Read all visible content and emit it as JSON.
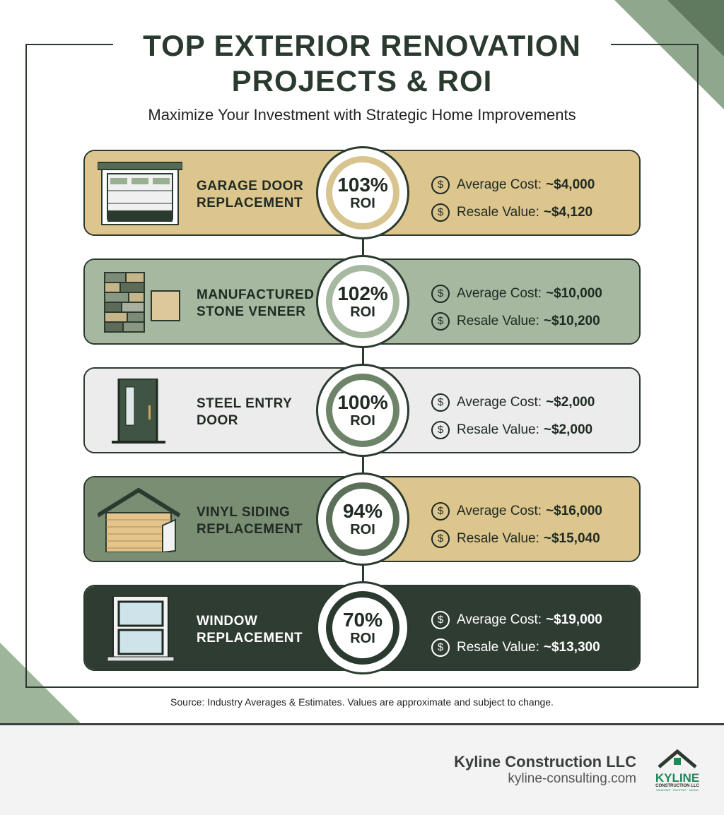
{
  "header": {
    "title_line1": "TOP EXTERIOR RENOVATION",
    "title_line2": "PROJECTS & ROI",
    "subtitle": "Maximize Your Investment with Strategic Home Improvements"
  },
  "projects": [
    {
      "name1": "GARAGE DOOR",
      "name2": "REPLACEMENT",
      "roi": "103%",
      "roi_label": "ROI",
      "cost_label": "Average Cost:",
      "cost": "~$4,000",
      "resale_label": "Resale Value:",
      "resale": "~$4,120",
      "icon": "garage-door-icon",
      "left_color": "#dcc68e",
      "right_color": "#dcc68e",
      "ring_color": "#d8c48f",
      "text_color": "#1f2a22"
    },
    {
      "name1": "MANUFACTURED",
      "name2": "STONE VENEER",
      "roi": "102%",
      "roi_label": "ROI",
      "cost_label": "Average Cost:",
      "cost": "~$10,000",
      "resale_label": "Resale Value:",
      "resale": "~$10,200",
      "icon": "stone-veneer-icon",
      "left_color": "#a6b89f",
      "right_color": "#a6b89f",
      "ring_color": "#a6b89f",
      "text_color": "#1f2a22"
    },
    {
      "name1": "STEEL ENTRY",
      "name2": "DOOR",
      "roi": "100%",
      "roi_label": "ROI",
      "cost_label": "Average Cost:",
      "cost": "~$2,000",
      "resale_label": "Resale Value:",
      "resale": "~$2,000",
      "icon": "steel-door-icon",
      "left_color": "#ececec",
      "right_color": "#ececec",
      "ring_color": "#6e8469",
      "text_color": "#1f2a22"
    },
    {
      "name1": "VINYL SIDING",
      "name2": "REPLACEMENT",
      "roi": "94%",
      "roi_label": "ROI",
      "cost_label": "Average Cost:",
      "cost": "~$16,000",
      "resale_label": "Resale Value:",
      "resale": "~$15,040",
      "icon": "vinyl-siding-house-icon",
      "left_color": "#7a8e74",
      "right_color": "#dcc68e",
      "ring_color": "#5c6f58",
      "text_color": "#1f2a22"
    },
    {
      "name1": "WINDOW",
      "name2": "REPLACEMENT",
      "roi": "70%",
      "roi_label": "ROI",
      "cost_label": "Average Cost:",
      "cost": "~$19,000",
      "resale_label": "Resale Value:",
      "resale": "~$13,300",
      "icon": "window-icon",
      "left_color": "#2f3c32",
      "right_color": "#2f3c32",
      "ring_color": "#2b3a2f",
      "text_color": "#ffffff"
    }
  ],
  "source": "Source: Industry Averages & Estimates. Values are approximate and subject to change.",
  "footer": {
    "company": "Kyline Construction LLC",
    "url": "kyline-consulting.com",
    "logo_text": "KYLINE",
    "logo_sub": "CONSTRUCTION LLC",
    "logo_tag": "WINDOWS · ROOFING · SIDING"
  }
}
